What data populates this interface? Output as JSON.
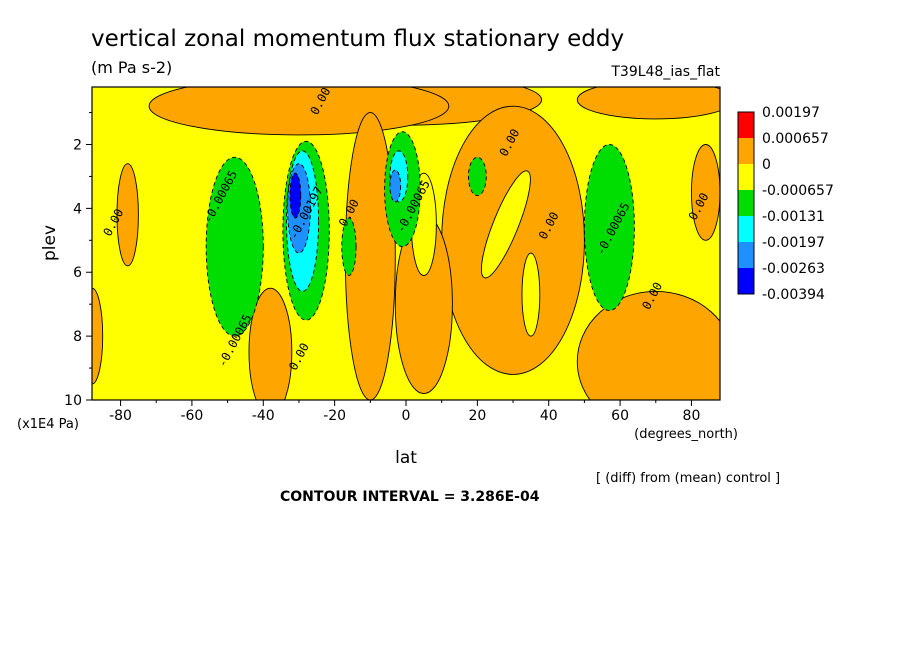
{
  "chart_data": {
    "type": "heatmap",
    "title": "vertical zonal momentum flux stationary eddy",
    "subtitle": "(m Pa s-2)",
    "run_label": "T39L48_ias_flat",
    "xlabel": "lat",
    "xunits": "(degrees_north)",
    "ylabel": "plev",
    "yunits": "(x1E4 Pa)",
    "xlim": [
      -88,
      88
    ],
    "ylim": [
      10,
      0.2
    ],
    "x_ticks": [
      -80,
      -60,
      -40,
      -20,
      0,
      20,
      40,
      60,
      80
    ],
    "x_tick_labels": [
      "-80",
      "-60",
      "-40",
      "-20",
      "0",
      "20",
      "40",
      "60",
      "80"
    ],
    "y_ticks": [
      2,
      4,
      6,
      8,
      10
    ],
    "y_tick_labels": [
      "2",
      "4",
      "6",
      "8",
      "10"
    ],
    "contour_interval_text": "CONTOUR INTERVAL = 3.286E-04",
    "diff_note": "[ (diff) from (mean) control ]",
    "legend": {
      "placement": "right",
      "labels": [
        "0.00197",
        "0.000657",
        "0",
        "-0.000657",
        "-0.00131",
        "-0.00197",
        "-0.00263",
        "-0.00394"
      ],
      "colors": [
        "#ff0000",
        "#ffa500",
        "#ffff00",
        "#00dd00",
        "#00ffff",
        "#1e90ff",
        "#0000ff"
      ]
    },
    "contour_labels": [
      {
        "text": "0.00",
        "lat": -23,
        "plev": 0.7
      },
      {
        "text": "-0.00065",
        "lat": -51,
        "plev": 3.7
      },
      {
        "text": "0.00",
        "lat": -81,
        "plev": 4.5
      },
      {
        "text": "-0.00197",
        "lat": -27,
        "plev": 4.2
      },
      {
        "text": "0.00",
        "lat": -15,
        "plev": 4.2
      },
      {
        "text": "-0.00065",
        "lat": 3,
        "plev": 4.0
      },
      {
        "text": "0.00",
        "lat": 30,
        "plev": 2.0
      },
      {
        "text": "0.00",
        "lat": 41,
        "plev": 4.6
      },
      {
        "text": "-0.00065",
        "lat": 59,
        "plev": 4.7
      },
      {
        "text": "0.00",
        "lat": 83,
        "plev": 4.0
      },
      {
        "text": "0.00",
        "lat": 70,
        "plev": 6.8
      },
      {
        "text": "-0.00065",
        "lat": -47,
        "plev": 8.2
      },
      {
        "text": "0.00",
        "lat": -29,
        "plev": 8.7
      }
    ],
    "regions": [
      {
        "level": 1,
        "lat": -2,
        "plev": 0.6,
        "rx": 40,
        "ry": 0.8,
        "rot": 0
      },
      {
        "level": 1,
        "lat": -30,
        "plev": 0.8,
        "rx": 42,
        "ry": 0.9,
        "rot": 0
      },
      {
        "level": 1,
        "lat": 70,
        "plev": 0.6,
        "rx": 22,
        "ry": 0.6,
        "rot": 0
      },
      {
        "level": 1,
        "lat": 70,
        "plev": 8.8,
        "rx": 22,
        "ry": 2.2,
        "rot": 0
      },
      {
        "level": 1,
        "lat": -10,
        "plev": 5.5,
        "rx": 7,
        "ry": 4.5,
        "rot": 0
      },
      {
        "level": 1,
        "lat": 30,
        "plev": 5.0,
        "rx": 20,
        "ry": 4.2,
        "rot": 0
      },
      {
        "level": 1,
        "lat": 5,
        "plev": 7.0,
        "rx": 8,
        "ry": 2.8,
        "rot": 0
      },
      {
        "level": 1,
        "lat": -38,
        "plev": 8.5,
        "rx": 6,
        "ry": 2.0,
        "rot": 0
      },
      {
        "level": 1,
        "lat": -78,
        "plev": 4.2,
        "rx": 3,
        "ry": 1.6,
        "rot": 0
      },
      {
        "level": 1,
        "lat": 84,
        "plev": 3.5,
        "rx": 4,
        "ry": 1.5,
        "rot": 0
      },
      {
        "level": 1,
        "lat": -88,
        "plev": 8.0,
        "rx": 3,
        "ry": 1.5,
        "rot": 0
      },
      {
        "level": 3,
        "lat": -48,
        "plev": 5.2,
        "rx": 8,
        "ry": 2.8,
        "rot": 0
      },
      {
        "level": 3,
        "lat": -28,
        "plev": 4.7,
        "rx": 6.5,
        "ry": 2.8,
        "rot": 0
      },
      {
        "level": 3,
        "lat": -1,
        "plev": 3.4,
        "rx": 5,
        "ry": 1.8,
        "rot": 0
      },
      {
        "level": 3,
        "lat": 57,
        "plev": 4.6,
        "rx": 7,
        "ry": 2.6,
        "rot": 0
      },
      {
        "level": 3,
        "lat": -16,
        "plev": 5.2,
        "rx": 2,
        "ry": 0.9,
        "rot": 0
      },
      {
        "level": 3,
        "lat": 20,
        "plev": 3.0,
        "rx": 2.5,
        "ry": 0.6,
        "rot": 0
      },
      {
        "level": 4,
        "lat": -29,
        "plev": 4.4,
        "rx": 4.5,
        "ry": 2.2,
        "rot": 0
      },
      {
        "level": 4,
        "lat": -2,
        "plev": 3.0,
        "rx": 2.5,
        "ry": 0.8,
        "rot": 0
      },
      {
        "level": 5,
        "lat": -30,
        "plev": 4.0,
        "rx": 3.2,
        "ry": 1.4,
        "rot": 0
      },
      {
        "level": 5,
        "lat": -3,
        "plev": 3.3,
        "rx": 1.5,
        "ry": 0.5,
        "rot": 0
      },
      {
        "level": 6,
        "lat": -31,
        "plev": 3.6,
        "rx": 1.5,
        "ry": 0.7,
        "rot": 0
      },
      {
        "level": 2,
        "lat": 5,
        "plev": 4.5,
        "rx": 3.5,
        "ry": 1.6,
        "rot": 0
      },
      {
        "level": 2,
        "lat": 28,
        "plev": 4.5,
        "rx": 3.5,
        "ry": 1.8,
        "rot": 22
      },
      {
        "level": 2,
        "lat": 35,
        "plev": 6.7,
        "rx": 2.5,
        "ry": 1.3,
        "rot": 0
      }
    ]
  }
}
